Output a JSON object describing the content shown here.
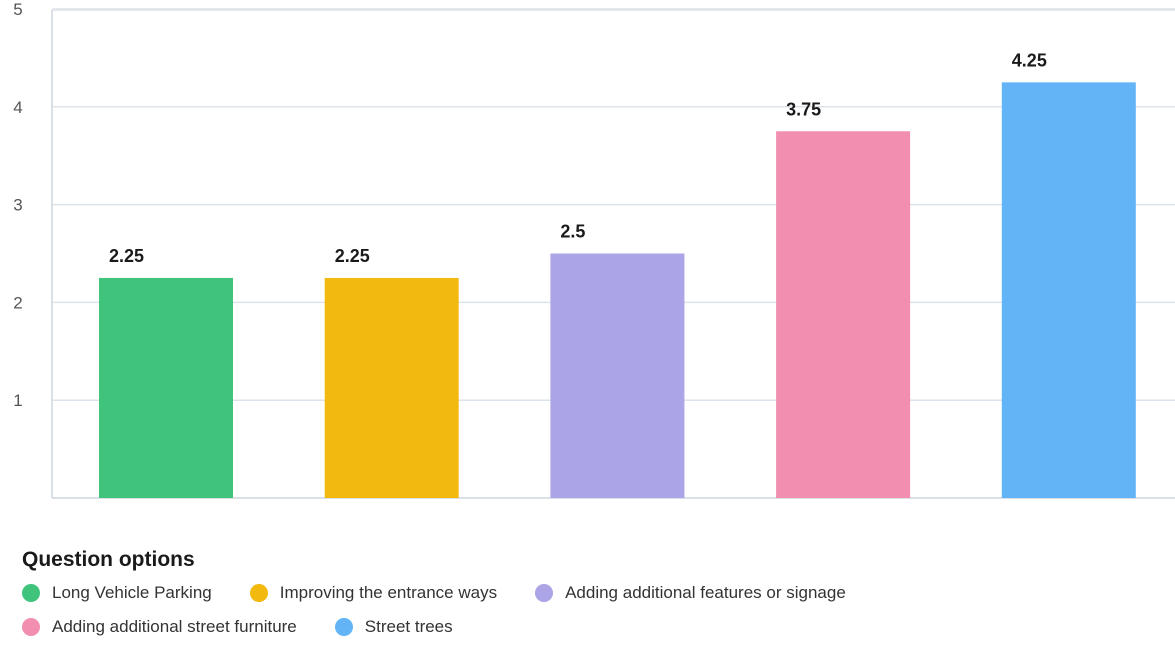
{
  "chart_data": {
    "type": "bar",
    "categories": [
      "Long Vehicle Parking",
      "Improving the entrance ways",
      "Adding additional features or signage",
      "Adding additional street furniture",
      "Street trees"
    ],
    "values": [
      2.25,
      2.25,
      2.5,
      3.75,
      4.25
    ],
    "data_labels": [
      "2.25",
      "2.25",
      "2.5",
      "3.75",
      "4.25"
    ],
    "colors": [
      "#40c47c",
      "#f2b90f",
      "#aba4e6",
      "#f28fb0",
      "#62b4f7"
    ],
    "y_ticks": [
      "1",
      "2",
      "3",
      "4",
      "5"
    ],
    "ylim": [
      0,
      5
    ],
    "grid": true,
    "legend_placement": "bottom",
    "legend_title": "Question options"
  }
}
